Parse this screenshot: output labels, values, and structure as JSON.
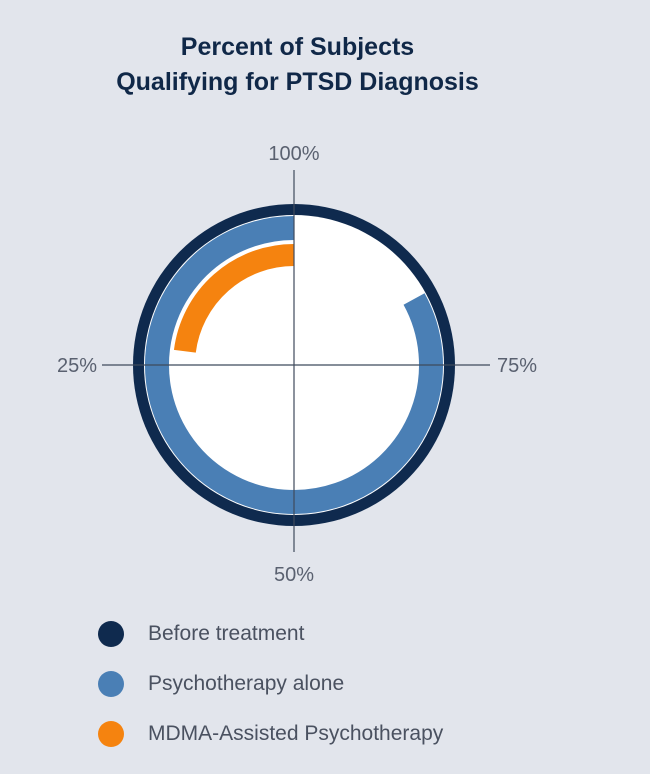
{
  "title_lines": [
    "Percent of Subjects",
    "Qualifying for PTSD Diagnosis"
  ],
  "chart_data": {
    "type": "radial-bar",
    "title": "Percent of Subjects Qualifying for PTSD Diagnosis",
    "axis": {
      "range": [
        0,
        100
      ],
      "direction": "counterclockwise from top",
      "tick_labels": [
        "100%",
        "25%",
        "50%",
        "75%"
      ],
      "tick_values": [
        100,
        25,
        50,
        75
      ]
    },
    "series": [
      {
        "name": "Before treatment",
        "value": 100,
        "color": "#0f2a4e"
      },
      {
        "name": "Psychotherapy alone",
        "value": 83,
        "color": "#4a7fb5"
      },
      {
        "name": "MDMA-Assisted Psychotherapy",
        "value": 23,
        "color": "#f5830f"
      }
    ],
    "legend_position": "bottom"
  },
  "colors": {
    "background": "#e2e5ec",
    "axis": "#3f4a5c",
    "inner_fill": "#ffffff"
  }
}
